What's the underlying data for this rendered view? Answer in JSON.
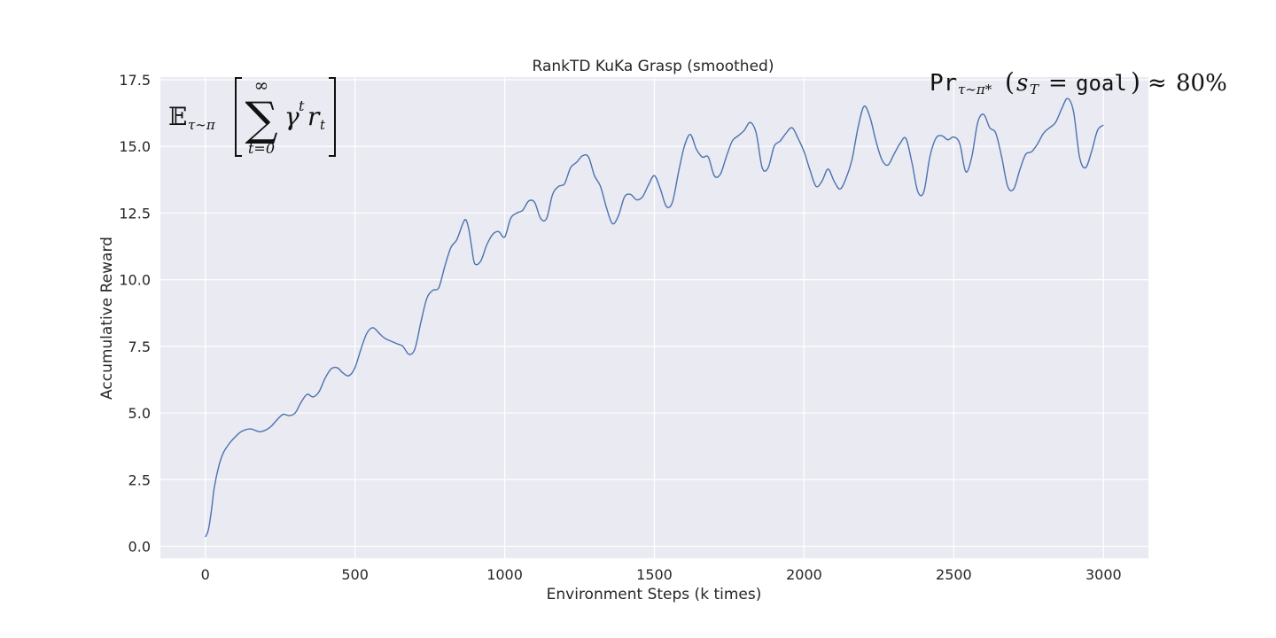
{
  "chart_data": {
    "type": "line",
    "title": "RankTD KuKa Grasp (smoothed)",
    "xlabel": "Environment Steps (k times)",
    "ylabel": "Accumulative Reward",
    "xlim": [
      -150,
      3150
    ],
    "ylim": [
      -0.45,
      17.6
    ],
    "x_ticks": [
      0,
      500,
      1000,
      1500,
      2000,
      2500,
      3000
    ],
    "x_tick_labels": [
      "0",
      "500",
      "1000",
      "1500",
      "2000",
      "2500",
      "3000"
    ],
    "y_ticks": [
      0.0,
      2.5,
      5.0,
      7.5,
      10.0,
      12.5,
      15.0,
      17.5
    ],
    "y_tick_labels": [
      "0.0",
      "2.5",
      "5.0",
      "7.5",
      "10.0",
      "12.5",
      "15.0",
      "17.5"
    ],
    "grid": true,
    "background": "#eaeaf2",
    "line_color": "#4c72b0",
    "annotations": {
      "expected_return": {
        "expectation": "𝔼",
        "expectation_sub": "τ∼π",
        "sum_top": "∞",
        "sum_sign": "∑",
        "sum_bottom": "t=0",
        "gamma": "γ",
        "gamma_sup": "t",
        "reward": "r",
        "reward_sub": "t"
      },
      "success_prob": {
        "pr": "Pr",
        "pr_sub": "τ∼π*",
        "open_paren": "(",
        "s": "s",
        "s_sub": "T",
        "equals": "=",
        "goal": "goal",
        "close_paren": ")",
        "approx": "≈",
        "value": "80%"
      }
    },
    "series": [
      {
        "x": [
          0,
          10,
          20,
          30,
          45,
          60,
          80,
          100,
          120,
          150,
          180,
          200,
          220,
          240,
          260,
          280,
          300,
          320,
          340,
          360,
          380,
          400,
          420,
          440,
          460,
          480,
          500,
          520,
          540,
          560,
          580,
          600,
          640,
          660,
          680,
          700,
          720,
          740,
          760,
          780,
          800,
          820,
          840,
          860,
          870,
          880,
          890,
          900,
          920,
          940,
          960,
          980,
          1000,
          1020,
          1040,
          1060,
          1080,
          1100,
          1120,
          1140,
          1160,
          1180,
          1200,
          1220,
          1240,
          1260,
          1280,
          1300,
          1320,
          1340,
          1360,
          1380,
          1400,
          1420,
          1440,
          1460,
          1480,
          1500,
          1520,
          1540,
          1560,
          1580,
          1600,
          1620,
          1640,
          1660,
          1680,
          1700,
          1720,
          1740,
          1760,
          1780,
          1800,
          1820,
          1840,
          1860,
          1880,
          1900,
          1920,
          1940,
          1960,
          1980,
          2000,
          2020,
          2040,
          2060,
          2080,
          2100,
          2120,
          2140,
          2160,
          2180,
          2200,
          2220,
          2240,
          2260,
          2280,
          2300,
          2320,
          2340,
          2360,
          2380,
          2400,
          2420,
          2440,
          2460,
          2480,
          2500,
          2520,
          2540,
          2560,
          2580,
          2600,
          2620,
          2640,
          2660,
          2680,
          2700,
          2720,
          2740,
          2760,
          2780,
          2800,
          2820,
          2840,
          2860,
          2880,
          2900,
          2920,
          2940,
          2960,
          2980,
          3000
        ],
        "y": [
          0.35,
          0.6,
          1.3,
          2.2,
          3.0,
          3.5,
          3.85,
          4.1,
          4.3,
          4.4,
          4.3,
          4.35,
          4.5,
          4.75,
          4.95,
          4.9,
          5.0,
          5.4,
          5.7,
          5.6,
          5.8,
          6.3,
          6.65,
          6.7,
          6.5,
          6.4,
          6.7,
          7.4,
          8.0,
          8.2,
          8.0,
          7.8,
          7.6,
          7.5,
          7.2,
          7.4,
          8.4,
          9.3,
          9.6,
          9.7,
          10.5,
          11.2,
          11.5,
          12.1,
          12.25,
          11.9,
          11.2,
          10.6,
          10.7,
          11.3,
          11.7,
          11.8,
          11.6,
          12.3,
          12.5,
          12.6,
          12.95,
          12.9,
          12.3,
          12.3,
          13.2,
          13.5,
          13.6,
          14.2,
          14.4,
          14.65,
          14.6,
          13.9,
          13.5,
          12.7,
          12.1,
          12.4,
          13.1,
          13.2,
          13.0,
          13.1,
          13.55,
          13.9,
          13.4,
          12.75,
          12.9,
          14.0,
          15.0,
          15.45,
          14.9,
          14.6,
          14.6,
          13.9,
          13.95,
          14.6,
          15.2,
          15.4,
          15.6,
          15.9,
          15.5,
          14.2,
          14.2,
          15.0,
          15.2,
          15.5,
          15.7,
          15.3,
          14.8,
          14.1,
          13.5,
          13.7,
          14.15,
          13.7,
          13.4,
          13.8,
          14.5,
          15.7,
          16.5,
          16.1,
          15.2,
          14.5,
          14.3,
          14.7,
          15.1,
          15.3,
          14.4,
          13.3,
          13.3,
          14.6,
          15.3,
          15.4,
          15.25,
          15.35,
          15.1,
          14.05,
          14.6,
          15.9,
          16.2,
          15.7,
          15.5,
          14.6,
          13.5,
          13.4,
          14.1,
          14.7,
          14.8,
          15.1,
          15.5,
          15.7,
          15.9,
          16.4,
          16.8,
          16.3,
          14.6,
          14.2,
          14.8,
          15.6,
          15.8
        ]
      }
    ]
  }
}
